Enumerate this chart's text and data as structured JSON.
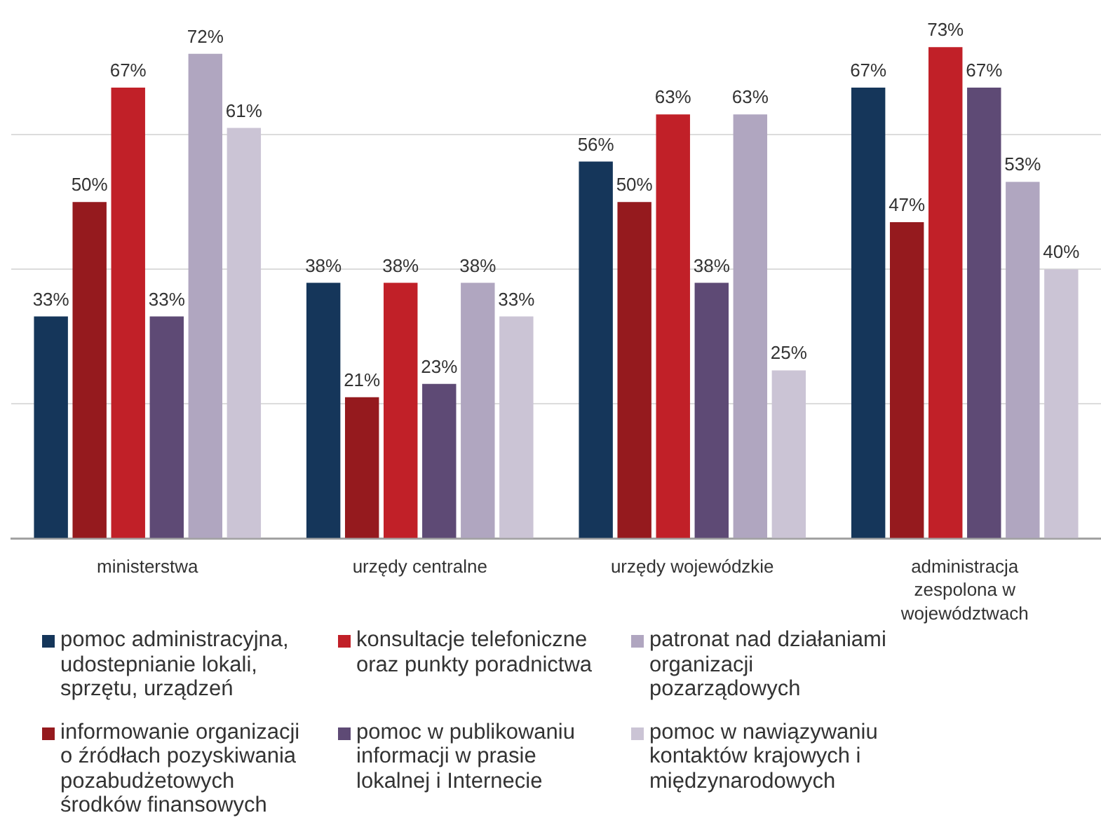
{
  "chart_data": {
    "type": "bar",
    "categories": [
      "ministerstwa",
      "urzędy centralne",
      "urzędy wojewódzkie",
      "administracja zespolona w województwach"
    ],
    "series": [
      {
        "name": "pomoc administracyjna, udostepnianie lokali, sprzętu, urządzeń",
        "color": "#15365a",
        "values": [
          33,
          38,
          56,
          67
        ],
        "value_labels": [
          "33%",
          "38%",
          "56%",
          "67%"
        ]
      },
      {
        "name": "informowanie organizacji o źródłach pozyskiwania pozabudżetowych środków finansowych",
        "color": "#951a1e",
        "values": [
          50,
          21,
          50,
          47
        ],
        "value_labels": [
          "50%",
          "21%",
          "50%",
          "47%"
        ]
      },
      {
        "name": "konsultacje telefoniczne oraz punkty poradnictwa",
        "color": "#c12028",
        "values": [
          67,
          38,
          63,
          73
        ],
        "value_labels": [
          "67%",
          "38%",
          "63%",
          "73%"
        ]
      },
      {
        "name": "pomoc w publikowaniu informacji w prasie lokalnej i Internecie",
        "color": "#5e4a75",
        "values": [
          33,
          23,
          38,
          67
        ],
        "value_labels": [
          "33%",
          "23%",
          "38%",
          "67%"
        ]
      },
      {
        "name": "patronat nad działaniami organizacji pozarządowych",
        "color": "#b0a6c0",
        "values": [
          72,
          38,
          63,
          53
        ],
        "value_labels": [
          "72%",
          "38%",
          "63%",
          "53%"
        ]
      },
      {
        "name": "pomoc w nawiązywaniu kontaktów krajowych i międzynarodowych",
        "color": "#cbc4d5",
        "values": [
          61,
          33,
          25,
          40
        ],
        "value_labels": [
          "61%",
          "33%",
          "25%",
          "40%"
        ]
      }
    ],
    "ylim": [
      0,
      80
    ],
    "yticks": [
      {
        "value": 0,
        "label": null
      },
      {
        "value": 20,
        "label": null
      },
      {
        "value": 40,
        "label": null
      },
      {
        "value": 60,
        "label": null
      }
    ],
    "grid": "y",
    "legend": "bottom",
    "tick_labels": "x"
  }
}
